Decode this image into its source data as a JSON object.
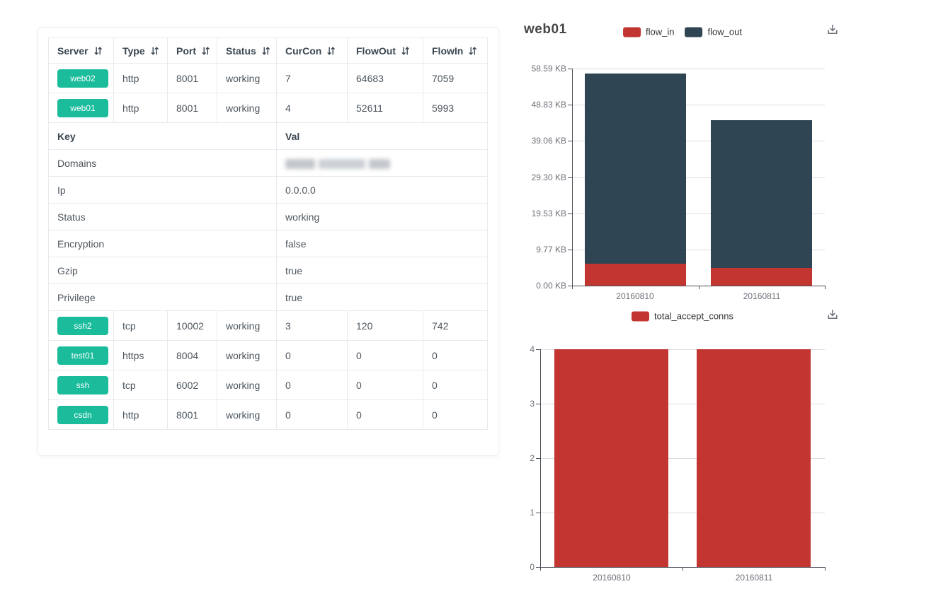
{
  "colors": {
    "badge_green": "#1abc9c",
    "bar_red": "#c23531",
    "bar_dark": "#2f4554",
    "grid_line": "#d9dce3",
    "axis_line": "#4a4f57",
    "axis_label": "#6e7079",
    "legend_text": "#333333",
    "title_text": "#464646",
    "table_border": "#e7eaee"
  },
  "icons": {
    "sort": "down-up-arrows",
    "download": "save-as-image-tray-arrow"
  },
  "table": {
    "columns": [
      {
        "label": "Server",
        "sortable": true
      },
      {
        "label": "Type",
        "sortable": true
      },
      {
        "label": "Port",
        "sortable": true
      },
      {
        "label": "Status",
        "sortable": true
      },
      {
        "label": "CurCon",
        "sortable": true
      },
      {
        "label": "FlowOut",
        "sortable": true
      },
      {
        "label": "FlowIn",
        "sortable": true
      }
    ],
    "top_rows": [
      {
        "server": "web02",
        "type": "http",
        "port": "8001",
        "status": "working",
        "curcon": "7",
        "flowout": "64683",
        "flowin": "7059"
      },
      {
        "server": "web01",
        "type": "http",
        "port": "8001",
        "status": "working",
        "curcon": "4",
        "flowout": "52611",
        "flowin": "5993"
      }
    ],
    "kv_header": {
      "key": "Key",
      "val": "Val"
    },
    "kv_rows": [
      {
        "key": "Domains",
        "val": "",
        "redacted": true
      },
      {
        "key": "Ip",
        "val": "0.0.0.0"
      },
      {
        "key": "Status",
        "val": "working"
      },
      {
        "key": "Encryption",
        "val": "false"
      },
      {
        "key": "Gzip",
        "val": "true"
      },
      {
        "key": "Privilege",
        "val": "true"
      }
    ],
    "bottom_rows": [
      {
        "server": "ssh2",
        "type": "tcp",
        "port": "10002",
        "status": "working",
        "curcon": "3",
        "flowout": "120",
        "flowin": "742"
      },
      {
        "server": "test01",
        "type": "https",
        "port": "8004",
        "status": "working",
        "curcon": "0",
        "flowout": "0",
        "flowin": "0"
      },
      {
        "server": "ssh",
        "type": "tcp",
        "port": "6002",
        "status": "working",
        "curcon": "0",
        "flowout": "0",
        "flowin": "0"
      },
      {
        "server": "csdn",
        "type": "http",
        "port": "8001",
        "status": "working",
        "curcon": "0",
        "flowout": "0",
        "flowin": "0"
      }
    ]
  },
  "chart_data": [
    {
      "type": "bar",
      "stacked": true,
      "title": "web01",
      "categories": [
        "20160810",
        "20160811"
      ],
      "series": [
        {
          "name": "flow_in",
          "color": "#c23531",
          "values": [
            5.85,
            4.7
          ]
        },
        {
          "name": "flow_out",
          "color": "#2f4554",
          "values": [
            51.38,
            39.9
          ]
        }
      ],
      "unit": "KB",
      "ymax": 58.59,
      "yticks": [
        "58.59 KB",
        "48.83 KB",
        "39.06 KB",
        "29.30 KB",
        "19.53 KB",
        "9.77 KB",
        "0.00 KB"
      ],
      "legend_position": "top-center",
      "grid": true,
      "toolbox": "save-as-image"
    },
    {
      "type": "bar",
      "stacked": false,
      "title": "",
      "categories": [
        "20160810",
        "20160811"
      ],
      "series": [
        {
          "name": "total_accept_conns",
          "color": "#c23531",
          "values": [
            4,
            4
          ]
        }
      ],
      "unit": "",
      "ymax": 4,
      "yticks": [
        "4",
        "3",
        "2",
        "1",
        "0"
      ],
      "legend_position": "top-center",
      "grid": true,
      "toolbox": "save-as-image"
    }
  ]
}
